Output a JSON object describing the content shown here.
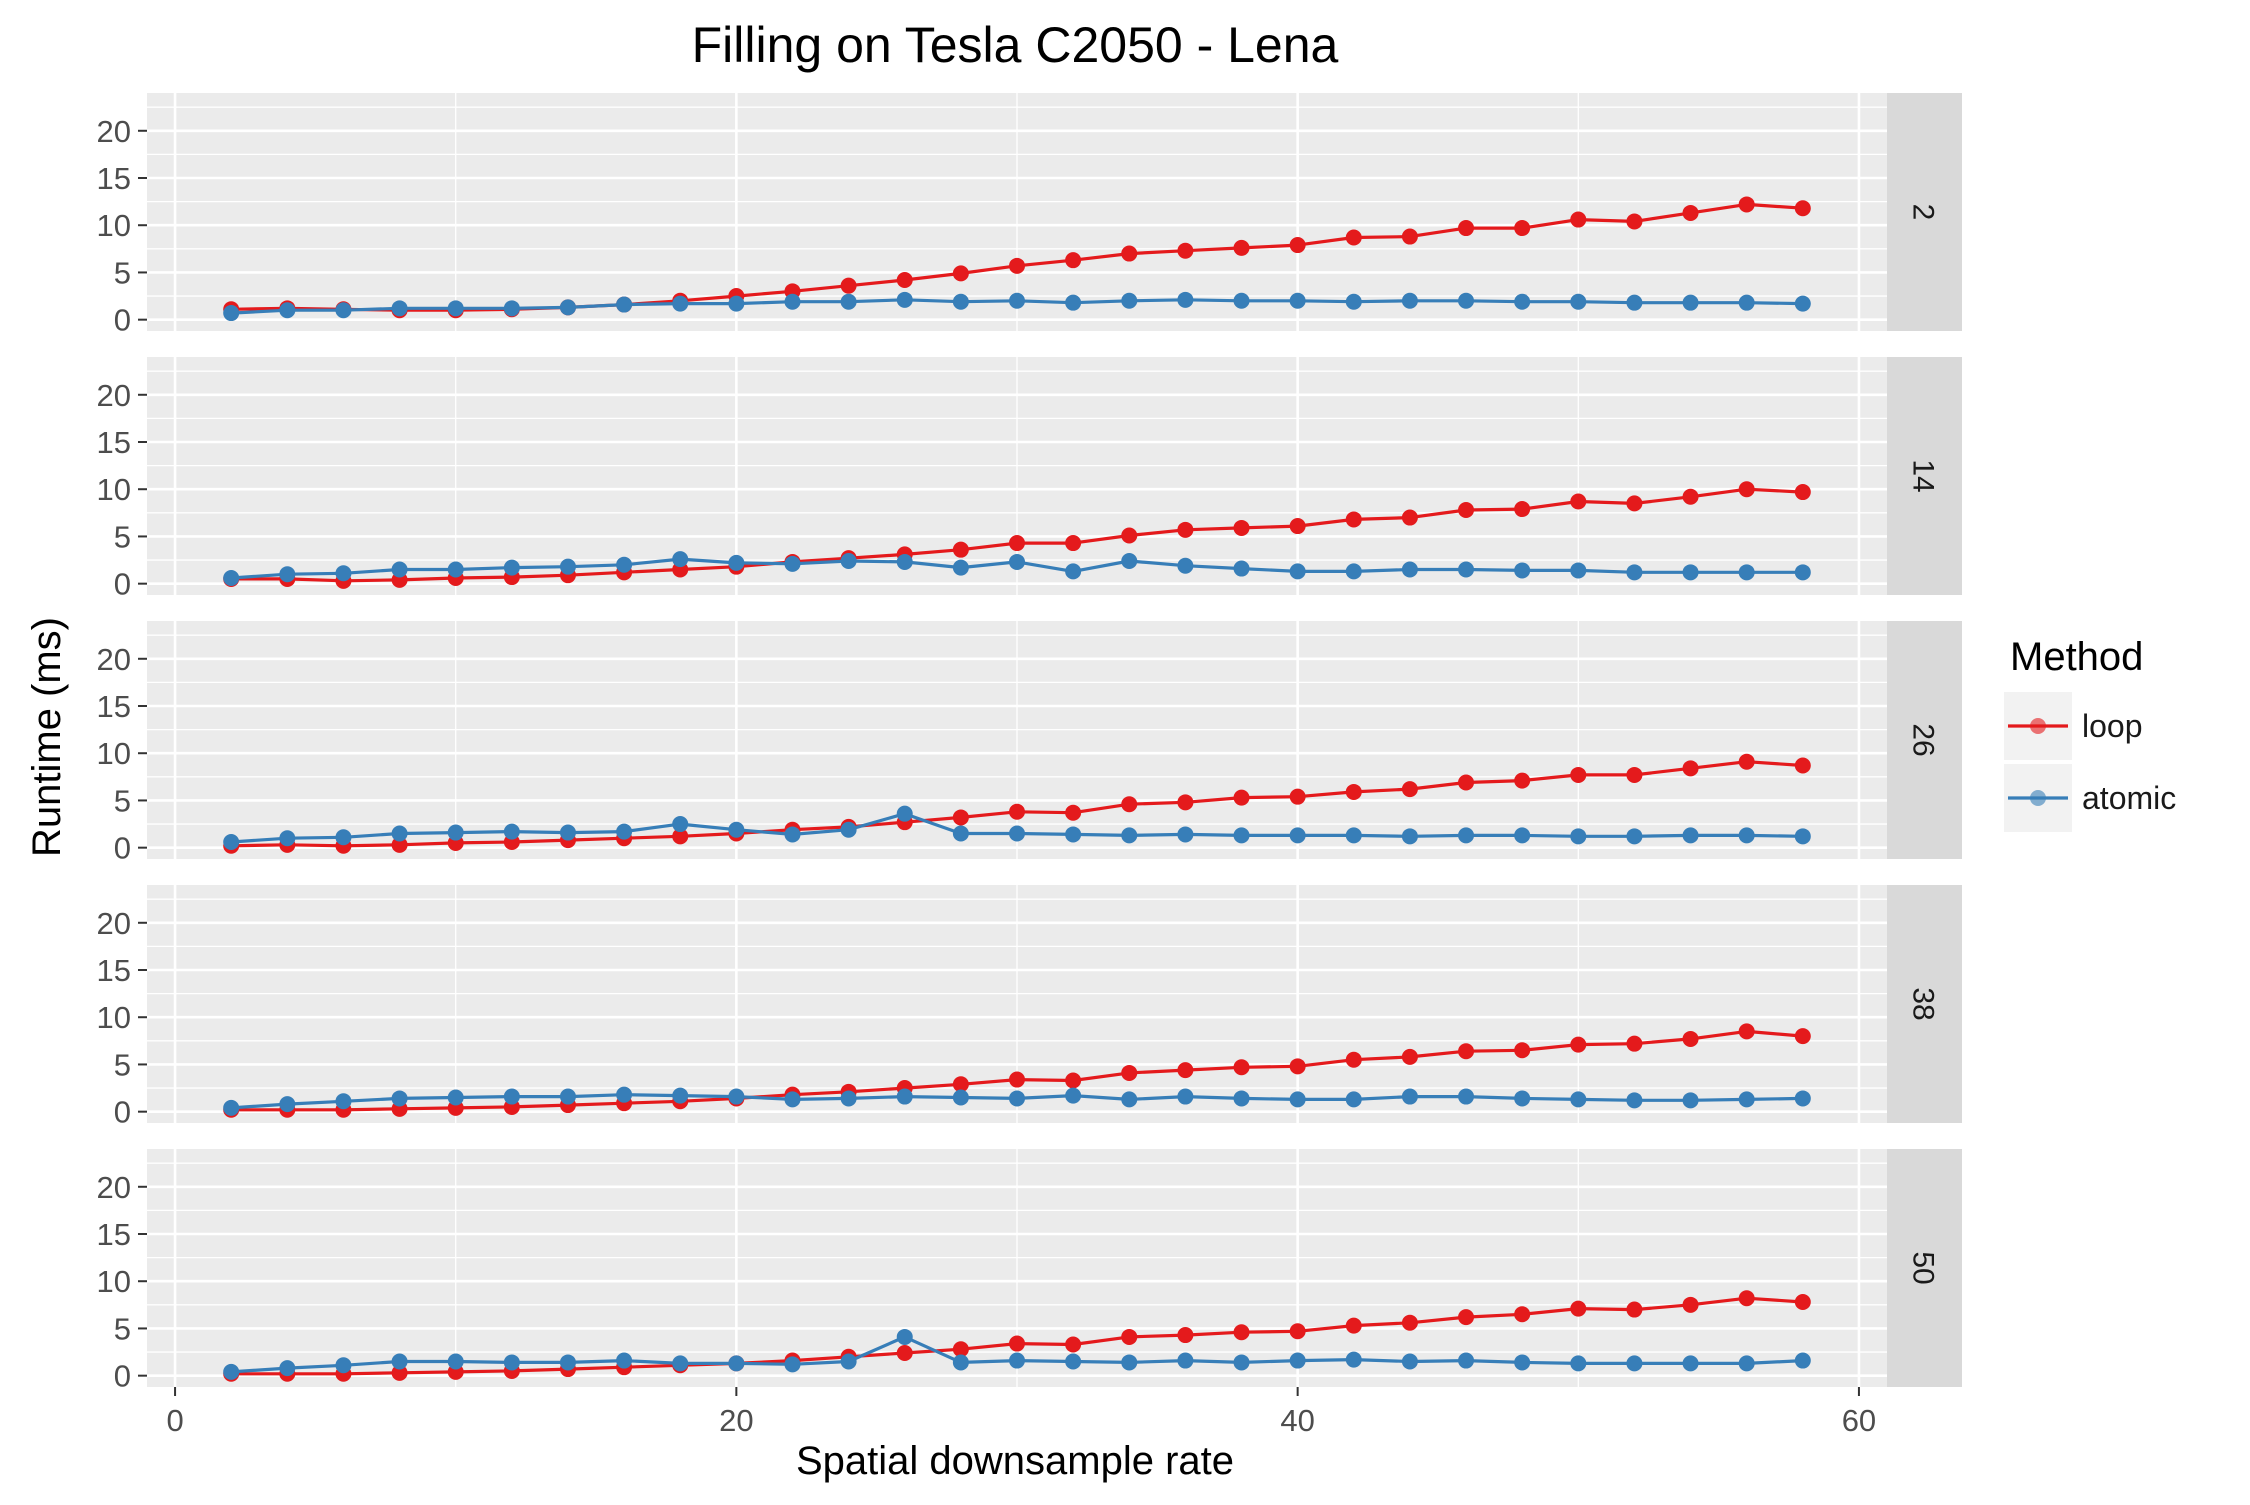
{
  "chart_data": {
    "type": "line",
    "title": "Filling on Tesla C2050 - Lena",
    "xlabel": "Spatial downsample rate",
    "ylabel": "Runtime (ms)",
    "xlim": [
      -1,
      61
    ],
    "ylim": [
      -1.2,
      24
    ],
    "x_ticks": [
      0,
      20,
      40,
      60
    ],
    "y_ticks": [
      0,
      5,
      10,
      15,
      20
    ],
    "grid": true,
    "legend": {
      "title": "Method",
      "position": "right",
      "entries": [
        {
          "label": "loop",
          "color": "#e41a1c"
        },
        {
          "label": "atomic",
          "color": "#377eb8"
        }
      ]
    },
    "x": [
      2,
      4,
      6,
      8,
      10,
      12,
      14,
      16,
      18,
      20,
      22,
      24,
      26,
      28,
      30,
      32,
      34,
      36,
      38,
      40,
      42,
      44,
      46,
      48,
      50,
      52,
      54,
      56,
      58
    ],
    "facets": [
      {
        "label": "2",
        "series": [
          {
            "name": "loop",
            "color": "#e41a1c",
            "values": [
              1.1,
              1.2,
              1.1,
              1.0,
              1.0,
              1.1,
              1.3,
              1.6,
              2.0,
              2.5,
              3.0,
              3.6,
              4.2,
              4.9,
              5.7,
              6.3,
              7.0,
              7.3,
              7.6,
              7.9,
              8.7,
              8.8,
              9.7,
              9.7,
              10.6,
              10.4,
              11.3,
              12.2,
              11.8
            ]
          },
          {
            "name": "atomic",
            "color": "#377eb8",
            "values": [
              0.7,
              1.0,
              1.0,
              1.2,
              1.2,
              1.2,
              1.3,
              1.6,
              1.7,
              1.7,
              1.9,
              1.9,
              2.1,
              1.9,
              2.0,
              1.8,
              2.0,
              2.1,
              2.0,
              2.0,
              1.9,
              2.0,
              2.0,
              1.9,
              1.9,
              1.8,
              1.8,
              1.8,
              1.7
            ]
          }
        ]
      },
      {
        "label": "14",
        "series": [
          {
            "name": "loop",
            "color": "#e41a1c",
            "values": [
              0.5,
              0.5,
              0.3,
              0.4,
              0.6,
              0.7,
              0.9,
              1.2,
              1.5,
              1.8,
              2.3,
              2.7,
              3.1,
              3.6,
              4.3,
              4.3,
              5.1,
              5.7,
              5.9,
              6.1,
              6.8,
              7.0,
              7.8,
              7.9,
              8.7,
              8.5,
              9.2,
              10.0,
              9.7
            ]
          },
          {
            "name": "atomic",
            "color": "#377eb8",
            "values": [
              0.6,
              1.0,
              1.1,
              1.5,
              1.5,
              1.7,
              1.8,
              2.0,
              2.6,
              2.2,
              2.1,
              2.4,
              2.3,
              1.7,
              2.3,
              1.3,
              2.4,
              1.9,
              1.6,
              1.3,
              1.3,
              1.5,
              1.5,
              1.4,
              1.4,
              1.2,
              1.2,
              1.2,
              1.2
            ]
          }
        ]
      },
      {
        "label": "26",
        "series": [
          {
            "name": "loop",
            "color": "#e41a1c",
            "values": [
              0.2,
              0.3,
              0.2,
              0.3,
              0.5,
              0.6,
              0.8,
              1.0,
              1.2,
              1.5,
              1.9,
              2.2,
              2.7,
              3.2,
              3.8,
              3.7,
              4.6,
              4.8,
              5.3,
              5.4,
              5.9,
              6.2,
              6.9,
              7.1,
              7.7,
              7.7,
              8.4,
              9.1,
              8.7
            ]
          },
          {
            "name": "atomic",
            "color": "#377eb8",
            "values": [
              0.6,
              1.0,
              1.1,
              1.5,
              1.6,
              1.7,
              1.6,
              1.7,
              2.5,
              1.9,
              1.4,
              1.9,
              3.6,
              1.5,
              1.5,
              1.4,
              1.3,
              1.4,
              1.3,
              1.3,
              1.3,
              1.2,
              1.3,
              1.3,
              1.2,
              1.2,
              1.3,
              1.3,
              1.2
            ]
          }
        ]
      },
      {
        "label": "38",
        "series": [
          {
            "name": "loop",
            "color": "#e41a1c",
            "values": [
              0.2,
              0.2,
              0.2,
              0.3,
              0.4,
              0.5,
              0.7,
              0.9,
              1.1,
              1.4,
              1.8,
              2.1,
              2.5,
              2.9,
              3.4,
              3.3,
              4.1,
              4.4,
              4.7,
              4.8,
              5.5,
              5.8,
              6.4,
              6.5,
              7.1,
              7.2,
              7.7,
              8.5,
              8.0
            ]
          },
          {
            "name": "atomic",
            "color": "#377eb8",
            "values": [
              0.4,
              0.8,
              1.1,
              1.4,
              1.5,
              1.6,
              1.6,
              1.8,
              1.7,
              1.6,
              1.3,
              1.4,
              1.6,
              1.5,
              1.4,
              1.7,
              1.3,
              1.6,
              1.4,
              1.3,
              1.3,
              1.6,
              1.6,
              1.4,
              1.3,
              1.2,
              1.2,
              1.3,
              1.4
            ]
          }
        ]
      },
      {
        "label": "50",
        "series": [
          {
            "name": "loop",
            "color": "#e41a1c",
            "values": [
              0.2,
              0.2,
              0.2,
              0.3,
              0.4,
              0.5,
              0.7,
              0.9,
              1.1,
              1.3,
              1.6,
              2.0,
              2.4,
              2.8,
              3.4,
              3.3,
              4.1,
              4.3,
              4.6,
              4.7,
              5.3,
              5.6,
              6.2,
              6.5,
              7.1,
              7.0,
              7.5,
              8.2,
              7.8
            ]
          },
          {
            "name": "atomic",
            "color": "#377eb8",
            "values": [
              0.4,
              0.8,
              1.1,
              1.5,
              1.5,
              1.4,
              1.4,
              1.6,
              1.3,
              1.3,
              1.2,
              1.5,
              4.1,
              1.4,
              1.6,
              1.5,
              1.4,
              1.6,
              1.4,
              1.6,
              1.7,
              1.5,
              1.6,
              1.4,
              1.3,
              1.3,
              1.3,
              1.3,
              1.6
            ]
          }
        ]
      }
    ]
  }
}
